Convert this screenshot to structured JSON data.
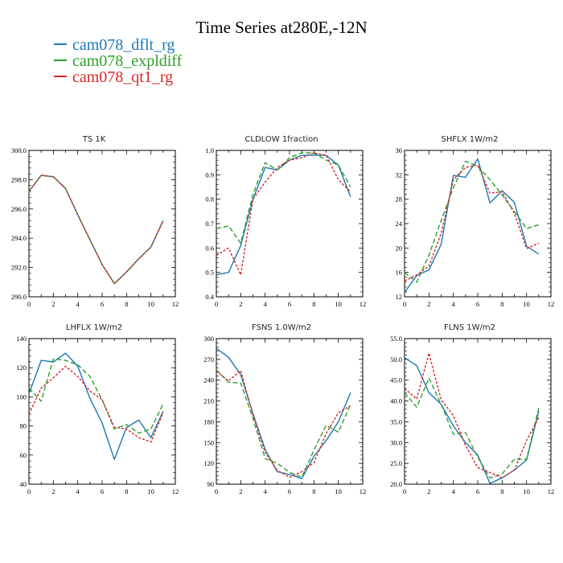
{
  "title": "Time Series at280E,-12N",
  "legend": [
    {
      "label": "cam078_dflt_rg",
      "color": "#1f77b4"
    },
    {
      "label": "cam078_expldiff",
      "color": "#2ca02c"
    },
    {
      "label": "cam078_qt1_rg",
      "color": "#d62728"
    }
  ],
  "chart_data": [
    {
      "type": "line",
      "title": "TS   1K",
      "x": [
        0,
        1,
        2,
        3,
        4,
        5,
        6,
        7,
        8,
        9,
        10,
        11
      ],
      "xlim": [
        0,
        12
      ],
      "xticks": [
        "0",
        "2",
        "4",
        "6",
        "8",
        "10",
        "12"
      ],
      "ylim": [
        290,
        300
      ],
      "yticks": [
        "290.0",
        "292.0",
        "294.0",
        "296.0",
        "298.0",
        "300.0"
      ],
      "series": [
        {
          "name": "cam078_dflt_rg",
          "values": [
            297.2,
            298.3,
            298.2,
            297.4,
            295.6,
            293.9,
            292.2,
            290.9,
            291.7,
            292.6,
            293.4,
            295.2
          ]
        },
        {
          "name": "cam078_expldiff",
          "values": [
            297.2,
            298.3,
            298.2,
            297.4,
            295.6,
            293.9,
            292.2,
            290.9,
            291.7,
            292.6,
            293.4,
            295.2
          ]
        },
        {
          "name": "cam078_qt1_rg",
          "values": [
            297.2,
            298.3,
            298.2,
            297.4,
            295.6,
            293.9,
            292.2,
            290.9,
            291.7,
            292.6,
            293.4,
            295.2
          ]
        }
      ]
    },
    {
      "type": "line",
      "title": "CLDLOW   1fraction",
      "x": [
        0,
        1,
        2,
        3,
        4,
        5,
        6,
        7,
        8,
        9,
        10,
        11
      ],
      "xlim": [
        0,
        12
      ],
      "xticks": [
        "0",
        "2",
        "4",
        "6",
        "8",
        "10",
        "12"
      ],
      "ylim": [
        0.4,
        1.0
      ],
      "yticks": [
        "0.4",
        "0.5",
        "0.6",
        "0.7",
        "0.8",
        "0.9",
        "1.0"
      ],
      "series": [
        {
          "name": "cam078_dflt_rg",
          "values": [
            0.49,
            0.5,
            0.61,
            0.8,
            0.93,
            0.92,
            0.96,
            0.98,
            0.98,
            0.98,
            0.94,
            0.81
          ]
        },
        {
          "name": "cam078_expldiff",
          "values": [
            0.68,
            0.69,
            0.62,
            0.82,
            0.95,
            0.92,
            0.97,
            0.99,
            0.99,
            0.96,
            0.94,
            0.85
          ]
        },
        {
          "name": "cam078_qt1_rg",
          "values": [
            0.57,
            0.6,
            0.49,
            0.8,
            0.87,
            0.93,
            0.96,
            0.97,
            0.99,
            0.98,
            0.88,
            0.83
          ]
        }
      ]
    },
    {
      "type": "line",
      "title": "SHFLX   1W/m2",
      "x": [
        0,
        1,
        2,
        3,
        4,
        5,
        6,
        7,
        8,
        9,
        10,
        11
      ],
      "xlim": [
        0,
        12
      ],
      "xticks": [
        "0",
        "2",
        "4",
        "6",
        "8",
        "10",
        "12"
      ],
      "ylim": [
        12,
        36
      ],
      "yticks": [
        "12",
        "16",
        "20",
        "24",
        "28",
        "32",
        "36"
      ],
      "series": [
        {
          "name": "cam078_dflt_rg",
          "values": [
            12.7,
            15.5,
            16.4,
            20.6,
            31.9,
            31.6,
            34.6,
            27.4,
            29.4,
            27.5,
            20.3,
            19.0
          ]
        },
        {
          "name": "cam078_expldiff",
          "values": [
            16.0,
            14.4,
            18.8,
            24.5,
            29.9,
            34.2,
            33.4,
            31.2,
            28.7,
            26.0,
            23.2,
            23.8
          ]
        },
        {
          "name": "cam078_qt1_rg",
          "values": [
            14.6,
            15.6,
            17.0,
            22.4,
            31.2,
            33.2,
            33.6,
            29.0,
            29.2,
            25.7,
            19.9,
            20.8
          ]
        }
      ]
    },
    {
      "type": "line",
      "title": "LHFLX   1W/m2",
      "x": [
        0,
        1,
        2,
        3,
        4,
        5,
        6,
        7,
        8,
        9,
        10,
        11
      ],
      "xlim": [
        0,
        12
      ],
      "xticks": [
        "0",
        "2",
        "4",
        "6",
        "8",
        "10",
        "12"
      ],
      "ylim": [
        40,
        140
      ],
      "yticks": [
        "40",
        "60",
        "80",
        "100",
        "120",
        "140"
      ],
      "series": [
        {
          "name": "cam078_dflt_rg",
          "values": [
            102,
            125,
            124,
            130,
            121,
            99,
            82,
            57,
            79,
            84,
            72,
            90
          ]
        },
        {
          "name": "cam078_expldiff",
          "values": [
            106,
            97,
            126,
            125,
            122,
            114,
            98,
            78,
            81,
            75,
            78,
            95
          ]
        },
        {
          "name": "cam078_qt1_rg",
          "values": [
            88,
            106,
            113,
            121,
            114,
            104,
            98,
            79,
            78,
            72,
            69,
            89
          ]
        }
      ]
    },
    {
      "type": "line",
      "title": "FSNS   1.0W/m2",
      "x": [
        0,
        1,
        2,
        3,
        4,
        5,
        6,
        7,
        8,
        9,
        10,
        11
      ],
      "xlim": [
        0,
        12
      ],
      "xticks": [
        "0",
        "2",
        "4",
        "6",
        "8",
        "10",
        "12"
      ],
      "ylim": [
        90,
        300
      ],
      "yticks": [
        "90",
        "120",
        "150",
        "180",
        "210",
        "240",
        "270",
        "300"
      ],
      "series": [
        {
          "name": "cam078_dflt_rg",
          "values": [
            286,
            273,
            248,
            192,
            140,
            108,
            104,
            98,
            130,
            153,
            180,
            222
          ]
        },
        {
          "name": "cam078_expldiff",
          "values": [
            255,
            237,
            236,
            185,
            127,
            120,
            107,
            100,
            139,
            175,
            165,
            205
          ]
        },
        {
          "name": "cam078_qt1_rg",
          "values": [
            253,
            239,
            254,
            190,
            136,
            110,
            100,
            108,
            121,
            163,
            193,
            203
          ]
        }
      ]
    },
    {
      "type": "line",
      "title": "FLNS   1W/m2",
      "x": [
        0,
        1,
        2,
        3,
        4,
        5,
        6,
        7,
        8,
        9,
        10,
        11
      ],
      "xlim": [
        0,
        12
      ],
      "xticks": [
        "0",
        "2",
        "4",
        "6",
        "8",
        "10",
        "12"
      ],
      "ylim": [
        20,
        55
      ],
      "yticks": [
        "20.0",
        "25.0",
        "30.0",
        "35.0",
        "40.0",
        "45.0",
        "50.0",
        "55.0"
      ],
      "series": [
        {
          "name": "cam078_dflt_rg",
          "values": [
            50.4,
            48.5,
            42.0,
            39.2,
            34.0,
            30.0,
            27.0,
            20.2,
            21.5,
            23.4,
            25.8,
            37.5
          ]
        },
        {
          "name": "cam078_expldiff",
          "values": [
            42.0,
            38.5,
            45.5,
            39.2,
            32.0,
            32.4,
            26.5,
            21.5,
            22.5,
            26.0,
            26.0,
            38.3
          ]
        },
        {
          "name": "cam078_qt1_rg",
          "values": [
            43.0,
            40.5,
            51.5,
            40.3,
            36.5,
            29.3,
            24.0,
            22.8,
            21.5,
            23.4,
            30.5,
            36.0
          ]
        }
      ]
    }
  ]
}
